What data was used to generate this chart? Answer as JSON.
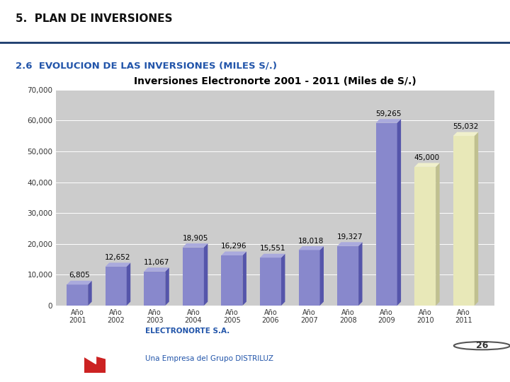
{
  "title": "Inversiones Electronorte 2001 - 2011 (Miles de S/.)",
  "header1": "5.  PLAN DE INVERSIONES",
  "header2": "2.6  EVOLUCION DE LAS INVERSIONES (MILES S/.)",
  "footer1": "ELECTRONORTE S.A.",
  "footer2": "Una Empresa del Grupo DISTRILUZ",
  "page_number": "26",
  "years": [
    "Año\n2001",
    "Año\n2002",
    "Año\n2003",
    "Año\n2004",
    "Año\n2005",
    "Año\n2006",
    "Año\n2007",
    "Año\n2008",
    "Año\n2009",
    "Año\n2010",
    "Año\n2011"
  ],
  "values": [
    6805,
    12652,
    11067,
    18905,
    16296,
    15551,
    18018,
    19327,
    59265,
    45000,
    55032
  ],
  "bar_colors_main": [
    "#8888CC",
    "#8888CC",
    "#8888CC",
    "#8888CC",
    "#8888CC",
    "#8888CC",
    "#8888CC",
    "#8888CC",
    "#8888CC",
    "#E8E8B8",
    "#E8E8B8"
  ],
  "bar_colors_side": [
    "#5555AA",
    "#5555AA",
    "#5555AA",
    "#5555AA",
    "#5555AA",
    "#5555AA",
    "#5555AA",
    "#5555AA",
    "#5555AA",
    "#C0C090",
    "#C0C090"
  ],
  "bar_colors_top": [
    "#AAAADD",
    "#AAAADD",
    "#AAAADD",
    "#AAAADD",
    "#AAAADD",
    "#AAAADD",
    "#AAAADD",
    "#AAAADD",
    "#AAAADD",
    "#F0F0CC",
    "#F0F0CC"
  ],
  "ylim": [
    0,
    70000
  ],
  "yticks": [
    0,
    10000,
    20000,
    30000,
    40000,
    50000,
    60000,
    70000
  ],
  "ytick_labels": [
    "0",
    "10,000",
    "20,000",
    "30,000",
    "40,000",
    "50,000",
    "60,000",
    "70,000"
  ],
  "bg_color": "#BBBBBB",
  "plot_bg_color": "#CCCCCC",
  "title_fontsize": 10,
  "value_fontsize": 7.5
}
